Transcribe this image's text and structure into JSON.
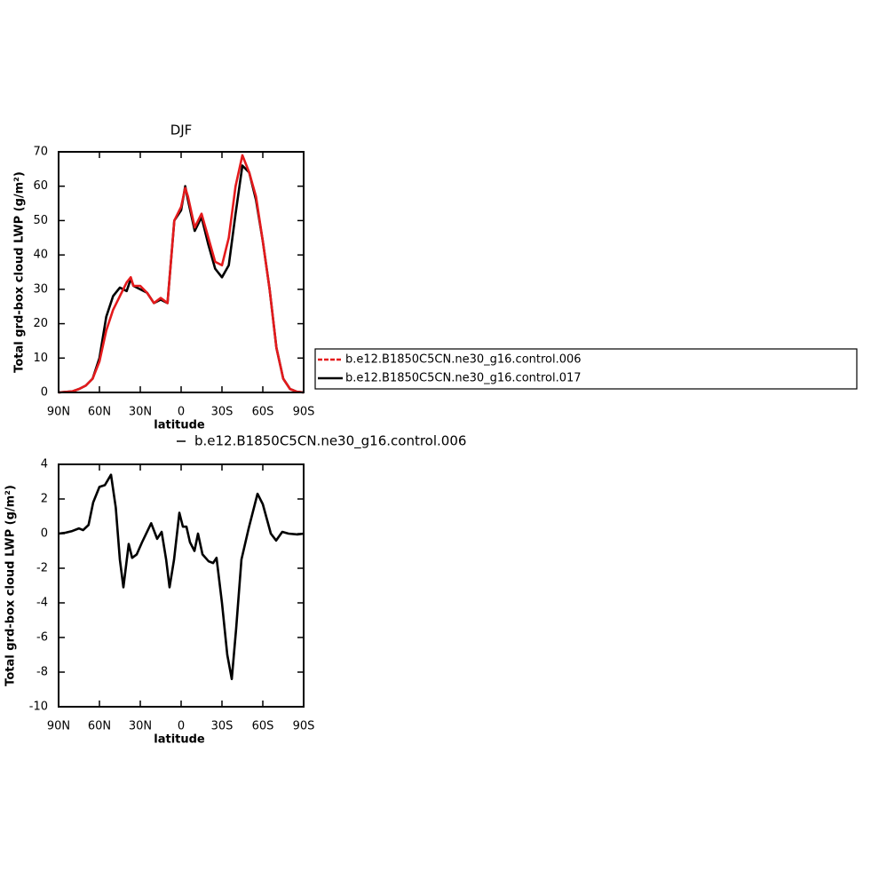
{
  "chart_data": [
    {
      "type": "line",
      "title": "DJF",
      "xlabel": "latitude",
      "ylabel": "Total grd-box cloud LWP (g/m²)",
      "x": [
        90,
        80,
        75,
        70,
        65,
        60,
        55,
        50,
        45,
        40,
        37,
        35,
        30,
        25,
        20,
        15,
        10,
        5,
        0,
        -3,
        -5,
        -10,
        -15,
        -20,
        -25,
        -30,
        -35,
        -40,
        -45,
        -50,
        -55,
        -60,
        -65,
        -70,
        -75,
        -80,
        -85,
        -90
      ],
      "series": [
        {
          "name": "b.e12.B1850C5CN.ne30_g16.control.006",
          "color": "#e41a1c",
          "values": [
            0,
            0.3,
            1,
            2,
            4,
            9,
            18,
            24,
            28,
            32,
            33.5,
            31,
            31,
            29,
            26,
            27.5,
            26,
            50,
            54,
            59.5,
            57,
            48,
            52,
            45,
            38,
            37,
            45,
            60,
            69,
            64,
            57,
            44,
            30,
            13,
            4,
            1,
            0.2,
            0
          ]
        },
        {
          "name": "b.e12.B1850C5CN.ne30_g16.control.017",
          "color": "#000000",
          "values": [
            0,
            0.3,
            1,
            2,
            4,
            10,
            22,
            28,
            30.5,
            29.5,
            33,
            31,
            30,
            29,
            26,
            27,
            26,
            50,
            53,
            60,
            56,
            47,
            51,
            43,
            36,
            33.5,
            37,
            52,
            66,
            64,
            56,
            44,
            30,
            13,
            4,
            1,
            0.2,
            0
          ]
        }
      ],
      "xlim": [
        90,
        -90
      ],
      "xticks": [
        {
          "value": 90,
          "label": "90N"
        },
        {
          "value": 60,
          "label": "60N"
        },
        {
          "value": 30,
          "label": "30N"
        },
        0,
        {
          "value": -30,
          "label": "30S"
        },
        {
          "value": -60,
          "label": "60S"
        },
        {
          "value": -90,
          "label": "90S"
        }
      ],
      "ylim": [
        0,
        70
      ],
      "yticks": [
        0,
        10,
        20,
        30,
        40,
        50,
        60,
        70
      ]
    },
    {
      "type": "line",
      "xlabel": "latitude",
      "ylabel": "Total grd-box cloud LWP (g/m²)",
      "x": [
        90,
        85,
        80,
        75,
        72,
        68,
        64.6,
        60,
        56,
        51.5,
        48,
        45,
        42.4,
        38.5,
        36,
        32.6,
        28.7,
        22,
        17.6,
        14.3,
        11,
        8.5,
        5.2,
        1.3,
        -1.3,
        -3.9,
        -6.5,
        -9.8,
        -12.4,
        -15.7,
        -20.2,
        -23.5,
        -26,
        -30,
        -33.9,
        -37.2,
        -40.4,
        -44.3,
        -49.6,
        -56.1,
        -60,
        -65.9,
        -69.8,
        -74.3,
        -78.9,
        -85.4,
        -90
      ],
      "series": [
        {
          "name": "b.e12.B1850C5CN.ne30_g16.control.006",
          "color": "#000000",
          "values": [
            0,
            0.05,
            0.15,
            0.3,
            0.2,
            0.5,
            1.8,
            2.7,
            2.8,
            3.4,
            1.5,
            -1.5,
            -3.1,
            -0.6,
            -1.4,
            -1.2,
            -0.5,
            0.6,
            -0.3,
            0.1,
            -1.5,
            -3.1,
            -1.5,
            1.2,
            0.4,
            0.4,
            -0.5,
            -1,
            0,
            -1.2,
            -1.6,
            -1.7,
            -1.4,
            -4,
            -7,
            -8.4,
            -5.5,
            -1.5,
            0.3,
            2.3,
            1.7,
            0,
            -0.4,
            0.1,
            0,
            -0.05,
            0
          ]
        }
      ],
      "xlim": [
        90,
        -90
      ],
      "xticks": [
        {
          "value": 90,
          "label": "90N"
        },
        {
          "value": 60,
          "label": "60N"
        },
        {
          "value": 30,
          "label": "30N"
        },
        0,
        {
          "value": -30,
          "label": "30S"
        },
        {
          "value": -60,
          "label": "60S"
        },
        {
          "value": -90,
          "label": "90S"
        }
      ],
      "ylim": [
        -10,
        4
      ],
      "yticks": [
        -10,
        -8,
        -6,
        -4,
        -2,
        0,
        2,
        4
      ]
    }
  ]
}
